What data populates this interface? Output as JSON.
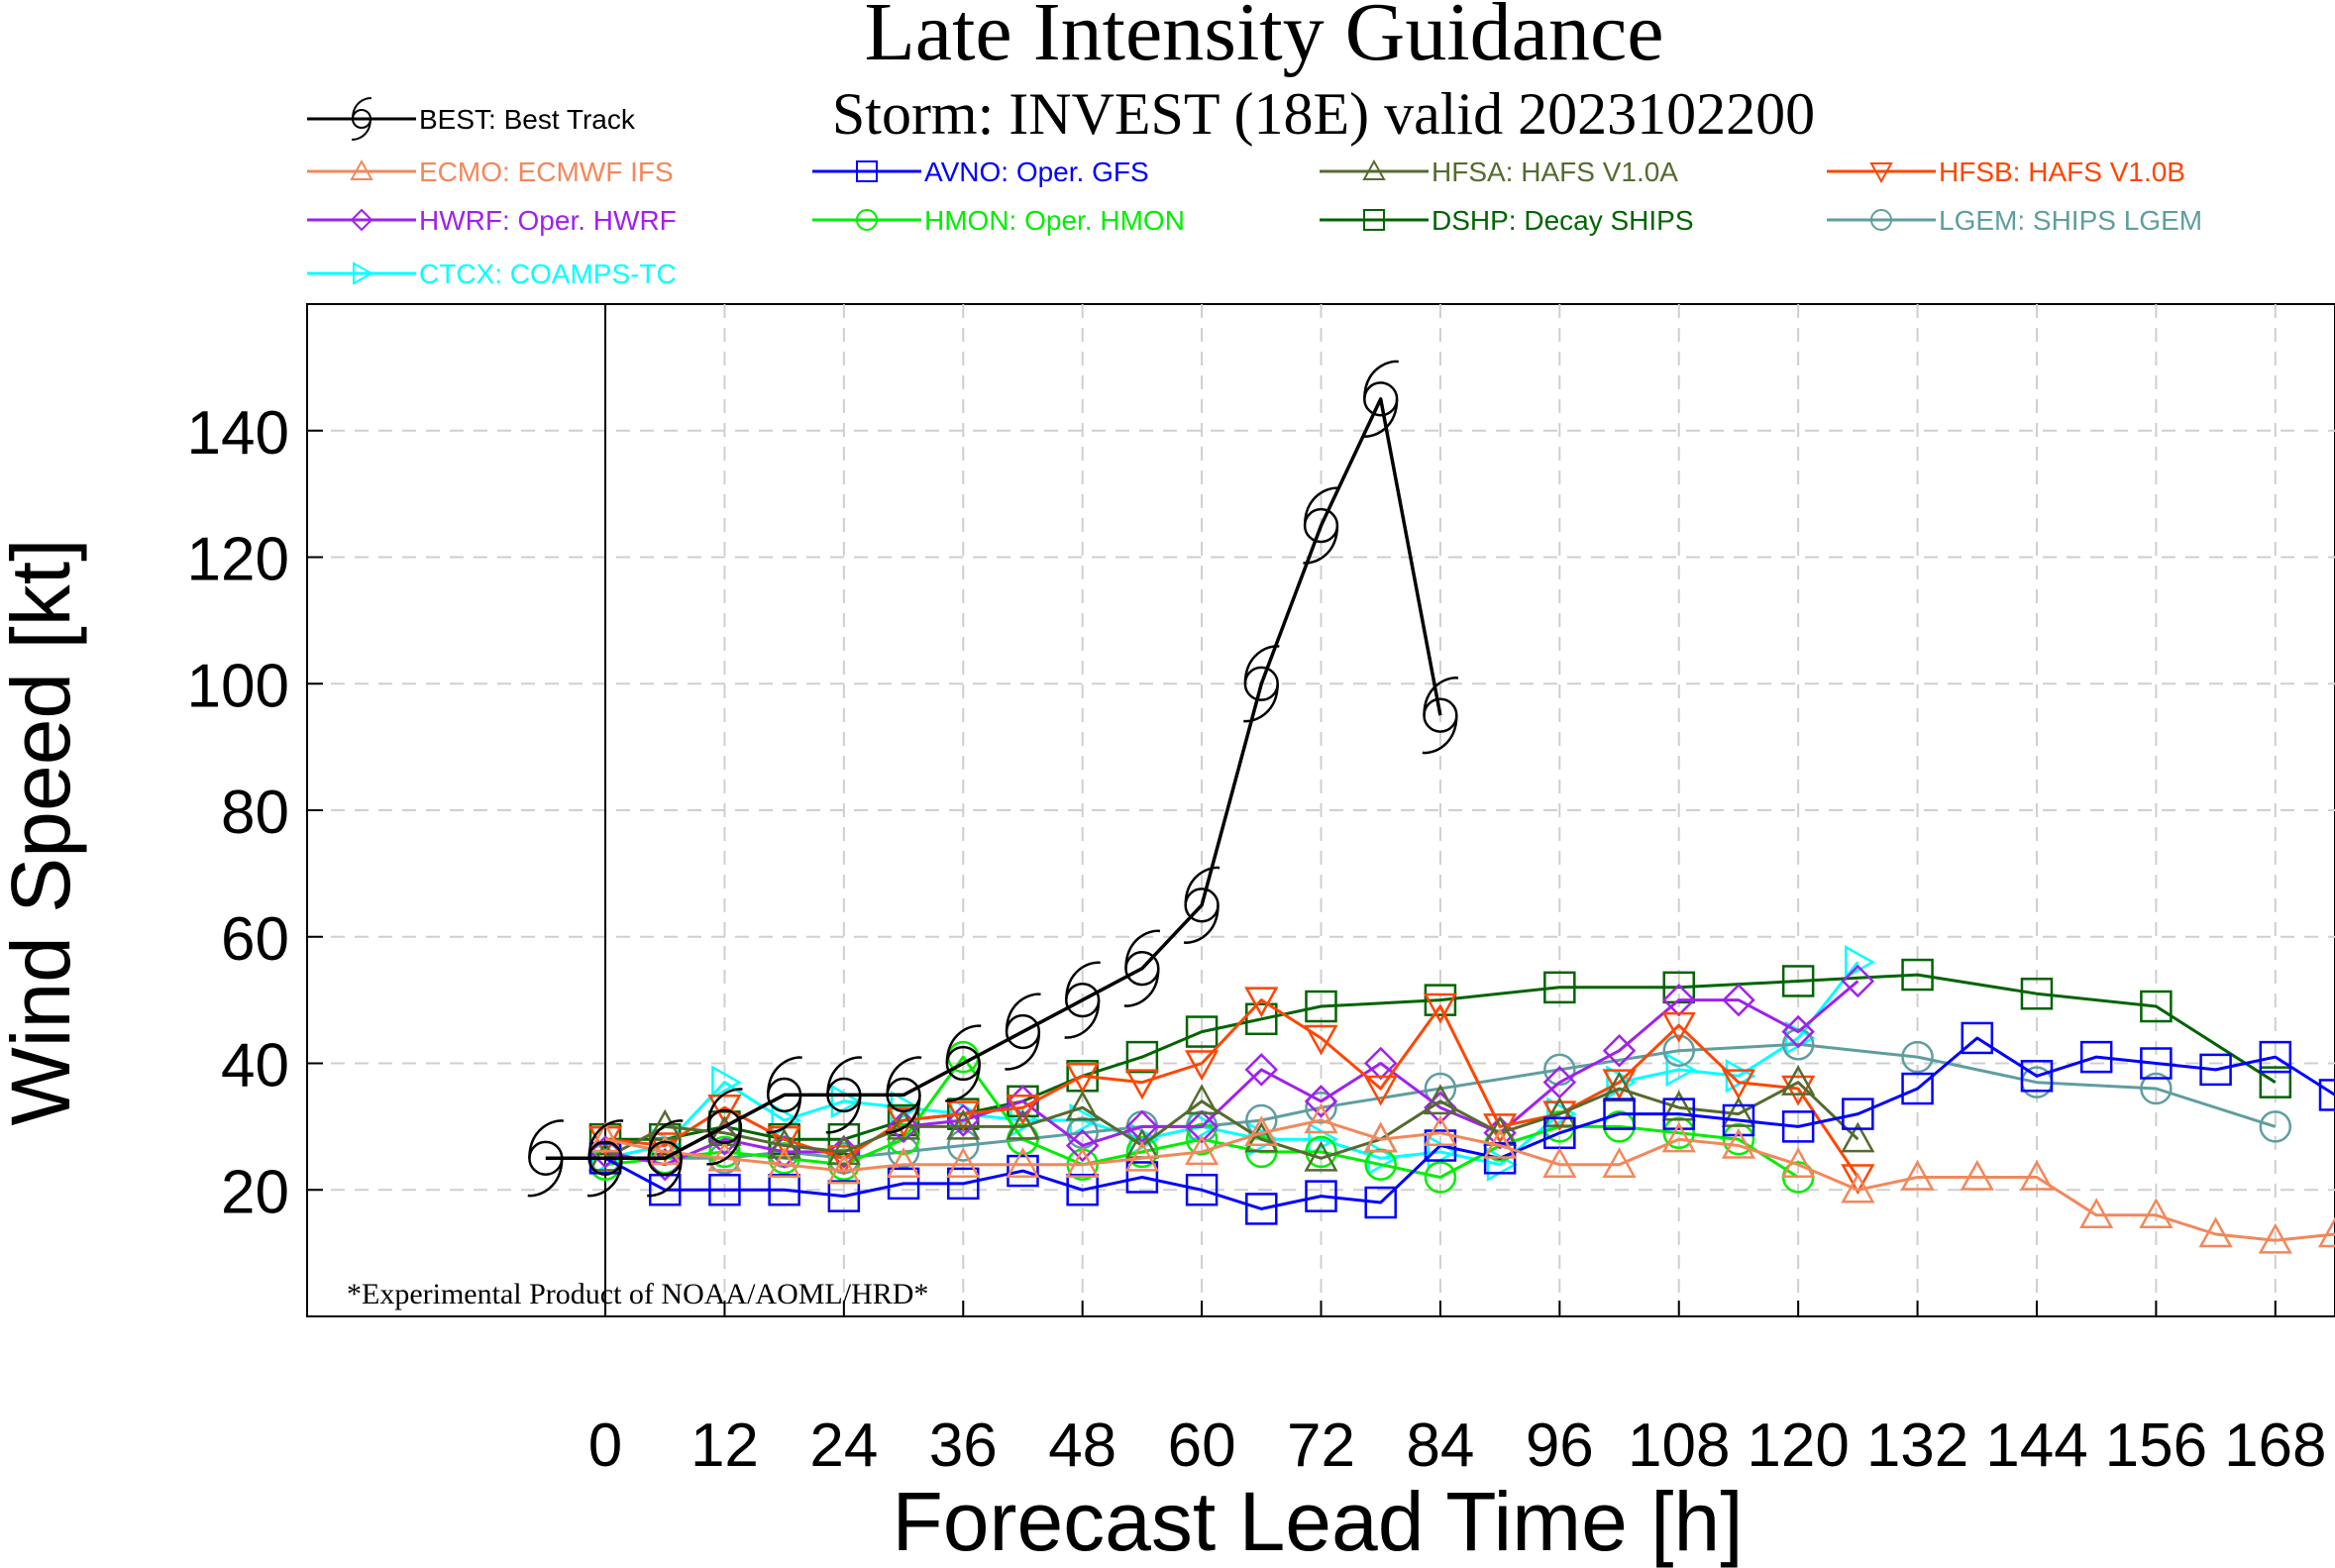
{
  "chart_data": {
    "type": "line",
    "title": "Late Intensity Guidance",
    "subtitle": "Storm: INVEST (18E) valid 2023102200",
    "xlabel": "Forecast Lead Time [h]",
    "ylabel": "Wind Speed [kt]",
    "footnote": "*Experimental Product of NOAA/AOML/HRD*",
    "xlim": [
      -30,
      174
    ],
    "ylim": [
      0,
      160
    ],
    "xticks": [
      0,
      12,
      24,
      36,
      48,
      60,
      72,
      84,
      96,
      108,
      120,
      132,
      144,
      156,
      168
    ],
    "yticks": [
      20,
      40,
      60,
      80,
      100,
      120,
      140
    ],
    "grid": true,
    "legend_position": "top",
    "series": [
      {
        "name": "BEST: Best Track",
        "color": "#000000",
        "marker": "hurricane",
        "x": [
          -6,
          0,
          6,
          12,
          18,
          24,
          30,
          36,
          42,
          48,
          54,
          60,
          66,
          72,
          78,
          84
        ],
        "y": [
          25,
          25,
          25,
          30,
          35,
          35,
          35,
          40,
          45,
          50,
          55,
          65,
          100,
          125,
          145,
          95
        ]
      },
      {
        "name": "ECMO: ECMWF IFS",
        "color": "#f4875a",
        "marker": "triangle",
        "x": [
          0,
          6,
          12,
          18,
          24,
          30,
          36,
          42,
          48,
          54,
          60,
          66,
          72,
          78,
          84,
          90,
          96,
          102,
          108,
          114,
          120,
          126,
          132,
          138,
          144,
          150,
          156,
          162,
          168,
          174
        ],
        "y": [
          28,
          26,
          25,
          24,
          23,
          24,
          24,
          24,
          24,
          25,
          26,
          29,
          31,
          28,
          29,
          27,
          24,
          24,
          28,
          27,
          24,
          20,
          22,
          22,
          22,
          16,
          16,
          13,
          12,
          13
        ]
      },
      {
        "name": "AVNO: Oper. GFS",
        "color": "#0000ff",
        "marker": "square",
        "x": [
          0,
          6,
          12,
          18,
          24,
          30,
          36,
          42,
          48,
          54,
          60,
          66,
          72,
          78,
          84,
          90,
          96,
          102,
          108,
          114,
          120,
          126,
          132,
          138,
          144,
          150,
          156,
          162,
          168,
          174
        ],
        "y": [
          25,
          20,
          20,
          20,
          19,
          21,
          21,
          23,
          20,
          22,
          20,
          17,
          19,
          18,
          27,
          25,
          29,
          32,
          32,
          31,
          30,
          32,
          36,
          44,
          38,
          41,
          40,
          39,
          41,
          35
        ]
      },
      {
        "name": "HFSA: HAFS V1.0A",
        "color": "#556b2f",
        "marker": "triangle",
        "x": [
          0,
          6,
          12,
          18,
          24,
          30,
          36,
          42,
          48,
          54,
          60,
          66,
          72,
          78,
          84,
          90,
          96,
          102,
          108,
          114,
          120,
          126
        ],
        "y": [
          25,
          30,
          29,
          27,
          26,
          30,
          30,
          30,
          33,
          27,
          34,
          28,
          25,
          28,
          34,
          29,
          32,
          36,
          33,
          32,
          37,
          28
        ]
      },
      {
        "name": "HFSB: HAFS V1.0B",
        "color": "#ff4500",
        "marker": "triangle-down",
        "x": [
          0,
          6,
          12,
          18,
          24,
          30,
          36,
          42,
          48,
          54,
          60,
          66,
          72,
          78,
          84,
          90,
          96,
          102,
          108,
          114,
          120,
          126
        ],
        "y": [
          28,
          27,
          33,
          28,
          25,
          31,
          32,
          33,
          38,
          37,
          40,
          50,
          44,
          36,
          49,
          30,
          32,
          37,
          46,
          37,
          36,
          22
        ]
      },
      {
        "name": "HWRF: Oper. HWRF",
        "color": "#a020f0",
        "marker": "diamond",
        "x": [
          0,
          6,
          12,
          18,
          24,
          30,
          36,
          42,
          48,
          54,
          60,
          66,
          72,
          78,
          84,
          90,
          96,
          102,
          108,
          114,
          120,
          126
        ],
        "y": [
          26,
          24,
          28,
          26,
          26,
          30,
          31,
          34,
          27,
          30,
          30,
          39,
          34,
          40,
          33,
          29,
          37,
          42,
          50,
          50,
          45,
          53
        ]
      },
      {
        "name": "HMON: Oper. HMON",
        "color": "#00ee00",
        "marker": "circle",
        "x": [
          0,
          6,
          12,
          18,
          24,
          30,
          36,
          42,
          48,
          54,
          60,
          66,
          72,
          78,
          84,
          90,
          96,
          102,
          108,
          114,
          120
        ],
        "y": [
          24,
          25,
          26,
          25,
          24,
          28,
          41,
          28,
          24,
          26,
          28,
          26,
          26,
          24,
          22,
          27,
          30,
          30,
          29,
          28,
          22
        ]
      },
      {
        "name": "DSHP: Decay SHIPS",
        "color": "#006400",
        "marker": "square",
        "x": [
          0,
          6,
          12,
          18,
          24,
          30,
          36,
          42,
          48,
          54,
          60,
          66,
          72,
          84,
          96,
          108,
          120,
          132,
          144,
          156,
          168
        ],
        "y": [
          28,
          28,
          30,
          28,
          28,
          31,
          32,
          34,
          38,
          41,
          45,
          47,
          49,
          50,
          52,
          52,
          53,
          54,
          51,
          49,
          37
        ]
      },
      {
        "name": "LGEM: SHIPS LGEM",
        "color": "#5f9ea0",
        "marker": "circle",
        "x": [
          0,
          6,
          12,
          18,
          24,
          30,
          36,
          42,
          48,
          54,
          60,
          66,
          72,
          84,
          96,
          108,
          120,
          132,
          144,
          156,
          168
        ],
        "y": [
          25,
          25,
          25,
          26,
          25,
          26,
          27,
          28,
          29,
          30,
          30,
          31,
          33,
          36,
          39,
          42,
          43,
          41,
          37,
          36,
          30
        ]
      },
      {
        "name": "CTCX: COAMPS-TC",
        "color": "#00ffff",
        "marker": "triangle-right",
        "x": [
          0,
          6,
          12,
          18,
          24,
          30,
          36,
          42,
          48,
          54,
          60,
          66,
          72,
          78,
          84,
          90,
          96,
          102,
          108,
          114,
          120,
          126
        ],
        "y": [
          25,
          27,
          37,
          31,
          34,
          33,
          32,
          31,
          31,
          28,
          30,
          28,
          28,
          25,
          26,
          24,
          32,
          37,
          39,
          38,
          44,
          56
        ]
      }
    ]
  }
}
